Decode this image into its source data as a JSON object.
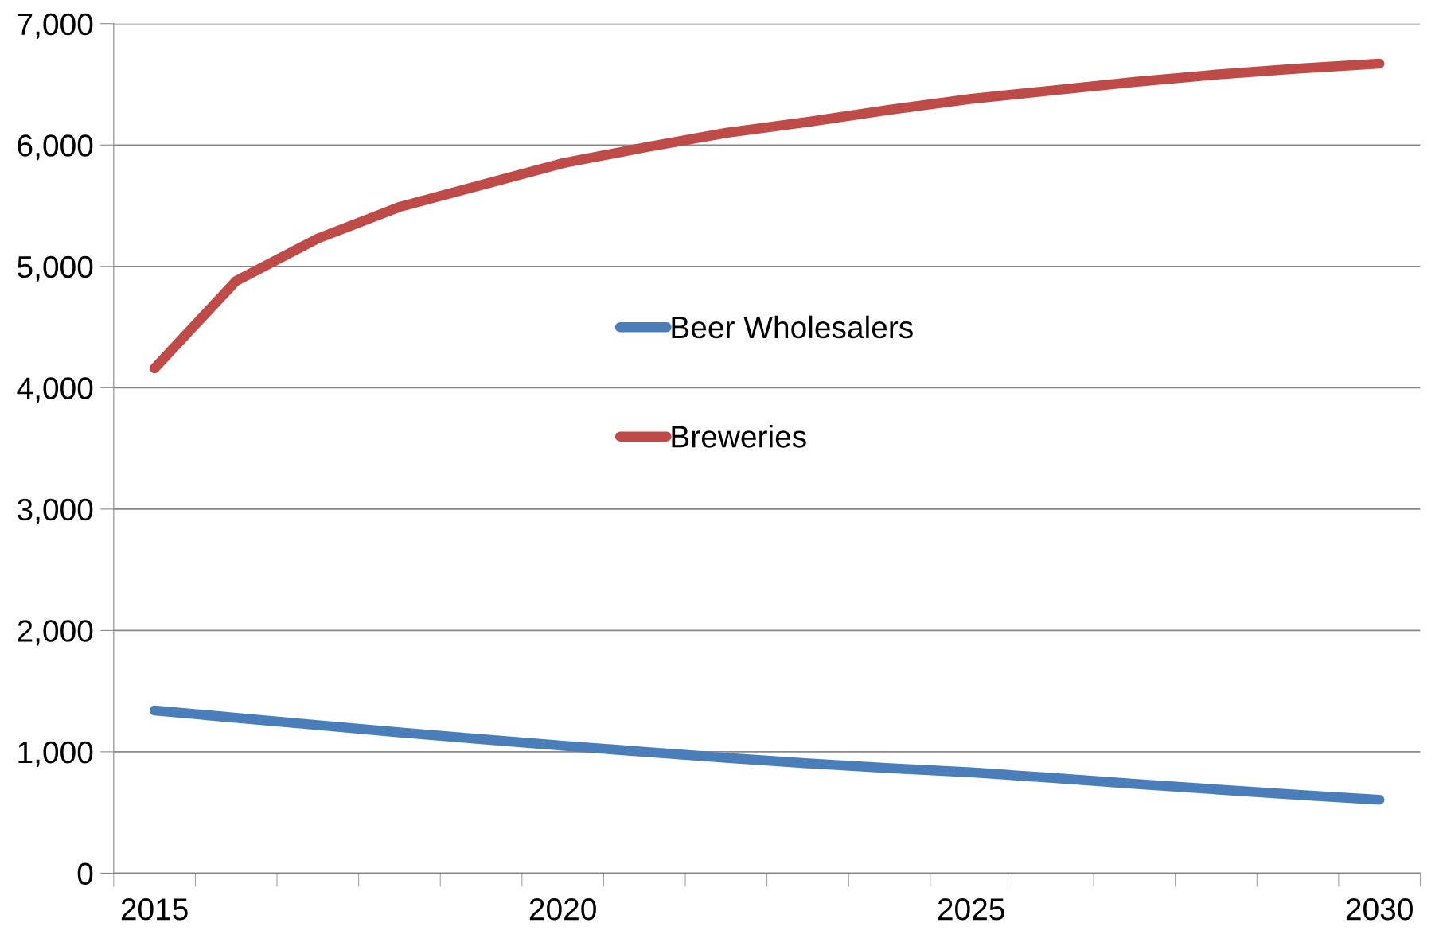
{
  "chart_data": {
    "type": "line",
    "categories": [
      "2015",
      null,
      null,
      null,
      null,
      "2020",
      null,
      null,
      null,
      null,
      "2025",
      null,
      null,
      null,
      null,
      "2030"
    ],
    "series": [
      {
        "name": "Beer Wholesalers",
        "color": "#4a7ebb",
        "values": [
          1340,
          1280,
          1220,
          1160,
          1105,
          1050,
          1000,
          950,
          905,
          865,
          830,
          785,
          735,
          690,
          645,
          605
        ]
      },
      {
        "name": "Breweries",
        "color": "#be4b48",
        "values": [
          4160,
          4880,
          5230,
          5490,
          5670,
          5850,
          5980,
          6100,
          6190,
          6290,
          6380,
          6450,
          6520,
          6580,
          6630,
          6670
        ]
      }
    ],
    "ylim": [
      0,
      7000
    ],
    "yticks": [
      {
        "value": 0,
        "label": "0"
      },
      {
        "value": 1000,
        "label": "1,000"
      },
      {
        "value": 2000,
        "label": "2,000"
      },
      {
        "value": 3000,
        "label": "3,000"
      },
      {
        "value": 4000,
        "label": "4,000"
      },
      {
        "value": 5000,
        "label": "5,000"
      },
      {
        "value": 6000,
        "label": "6,000"
      },
      {
        "value": 7000,
        "label": "7,000"
      }
    ],
    "grid": "y",
    "legend": "center",
    "line_style": "solid"
  }
}
